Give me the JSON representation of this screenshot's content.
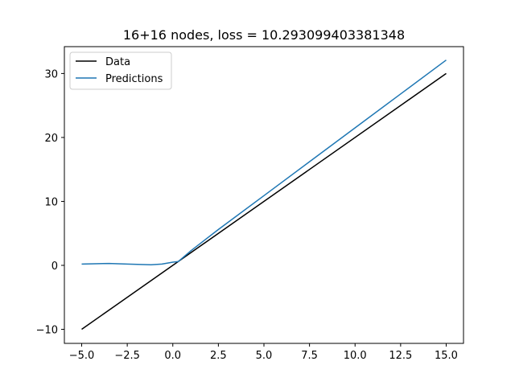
{
  "chart_data": {
    "type": "line",
    "title": "16+16 nodes, loss = 10.293099403381348",
    "xlabel": "",
    "ylabel": "",
    "xlim": [
      -5.95,
      15.95
    ],
    "ylim": [
      -12.2,
      34.2
    ],
    "x_ticks": [
      -5.0,
      -2.5,
      0.0,
      2.5,
      5.0,
      7.5,
      10.0,
      12.5,
      15.0
    ],
    "x_tick_labels": [
      "−5.0",
      "−2.5",
      "0.0",
      "2.5",
      "5.0",
      "7.5",
      "10.0",
      "12.5",
      "15.0"
    ],
    "y_ticks": [
      -10,
      0,
      10,
      20,
      30
    ],
    "y_tick_labels": [
      "−10",
      "0",
      "10",
      "20",
      "30"
    ],
    "grid": false,
    "legend_position": "top-left",
    "series": [
      {
        "name": "Data",
        "color": "#000000",
        "x": [
          -5.0,
          15.0
        ],
        "y": [
          -10.0,
          30.0
        ]
      },
      {
        "name": "Predictions",
        "color": "#1f77b4",
        "x": [
          -5.0,
          -3.5,
          -2.5,
          -1.2,
          -0.6,
          0.0,
          0.3,
          1.0,
          2.5,
          5.0,
          7.5,
          10.0,
          12.5,
          15.0
        ],
        "y": [
          0.2,
          0.3,
          0.2,
          0.1,
          0.2,
          0.5,
          0.6,
          2.3,
          5.6,
          10.9,
          16.2,
          21.5,
          26.8,
          32.1
        ]
      }
    ]
  }
}
